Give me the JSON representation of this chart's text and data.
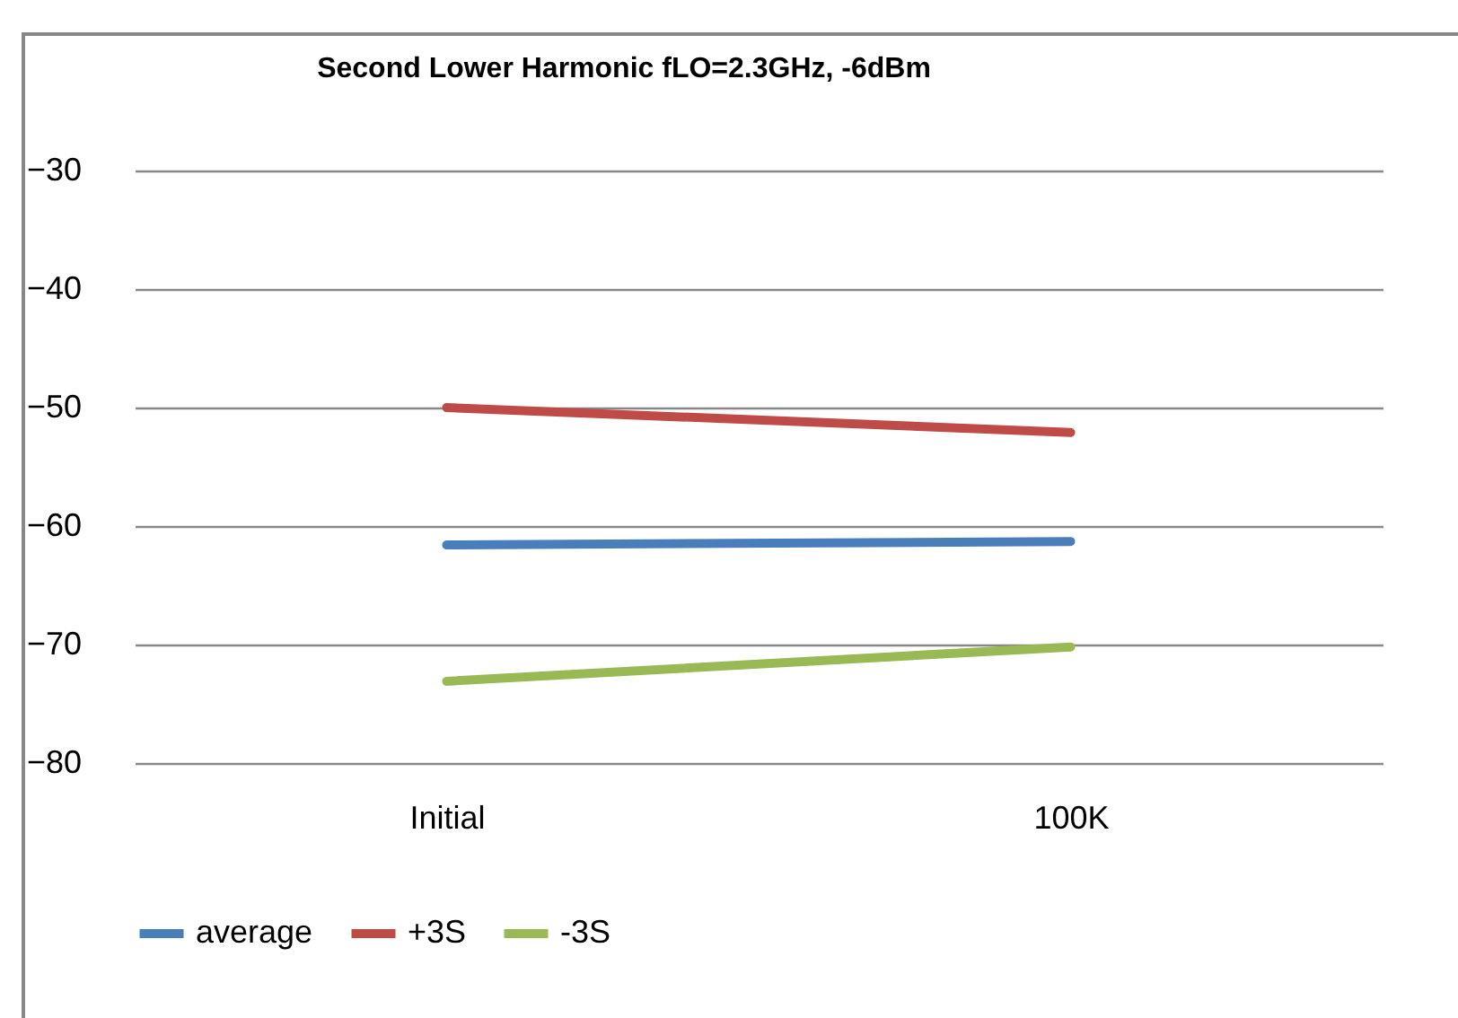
{
  "chart_data": {
    "type": "line",
    "title": "Second Lower Harmonic fLO=2.3GHz, -6dBm",
    "categories": [
      "Initial",
      "100K"
    ],
    "series": [
      {
        "name": "average",
        "color": "#4a7ebb",
        "values": [
          -61.6,
          -61.3
        ]
      },
      {
        "name": "+3S",
        "color": "#be4b48",
        "values": [
          -50,
          -52.1
        ]
      },
      {
        "name": "-3S",
        "color": "#98b954",
        "values": [
          -73.1,
          -70.2
        ]
      }
    ],
    "ylim": [
      -80,
      -30
    ],
    "yticks": [
      -80,
      -70,
      -60,
      -50,
      -40,
      -30
    ],
    "grid": "y",
    "legend": "bottom",
    "marker": "none",
    "line_style": "solid"
  }
}
